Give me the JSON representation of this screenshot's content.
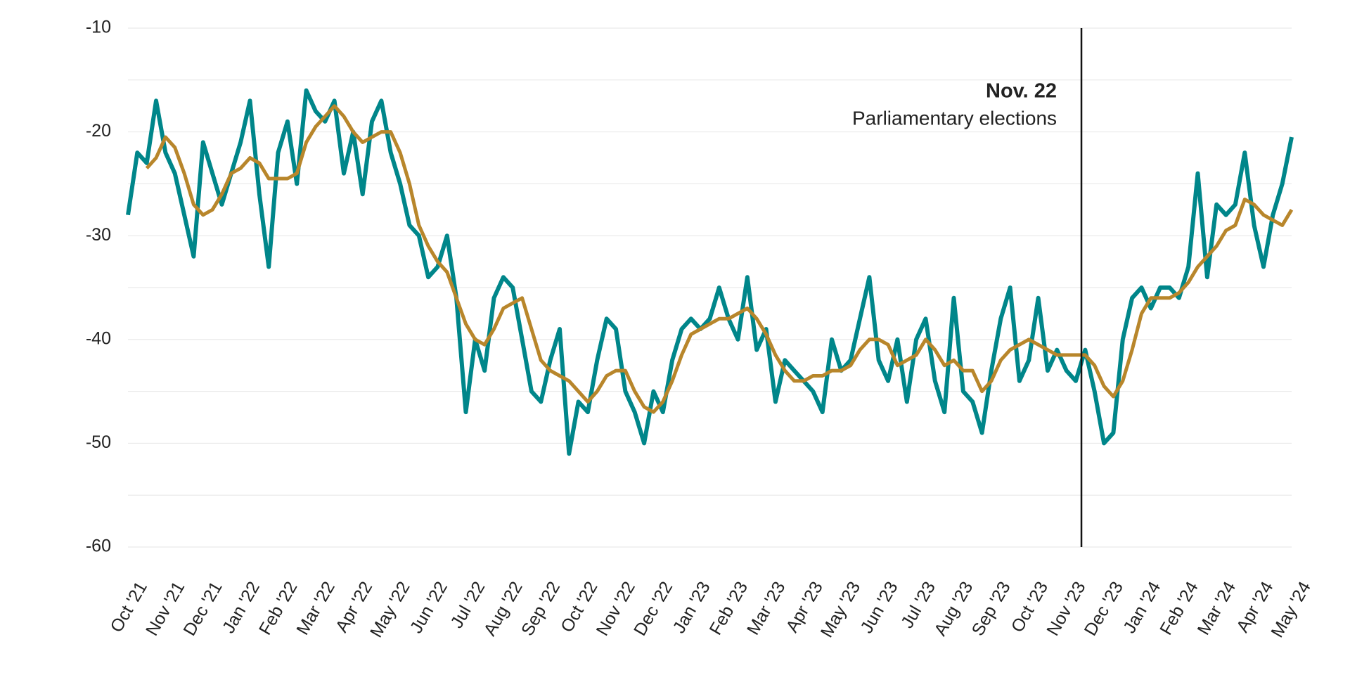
{
  "chart_data": {
    "type": "line",
    "x": [
      0,
      0.25,
      0.5,
      0.75,
      1,
      1.25,
      1.5,
      1.75,
      2,
      2.25,
      2.5,
      2.75,
      3,
      3.25,
      3.5,
      3.75,
      4,
      4.25,
      4.5,
      4.75,
      5,
      5.25,
      5.5,
      5.75,
      6,
      6.25,
      6.5,
      6.75,
      7,
      7.25,
      7.5,
      7.75,
      8,
      8.25,
      8.5,
      8.75,
      9,
      9.25,
      9.5,
      9.75,
      10,
      10.25,
      10.5,
      10.75,
      11,
      11.25,
      11.5,
      11.75,
      12,
      12.25,
      12.5,
      12.75,
      13,
      13.25,
      13.5,
      13.75,
      14,
      14.25,
      14.5,
      14.75,
      15,
      15.25,
      15.5,
      15.75,
      16,
      16.25,
      16.5,
      16.75,
      17,
      17.25,
      17.5,
      17.75,
      18,
      18.25,
      18.5,
      18.75,
      19,
      19.25,
      19.5,
      19.75,
      20,
      20.25,
      20.5,
      20.75,
      21,
      21.25,
      21.5,
      21.75,
      22,
      22.25,
      22.5,
      22.75,
      23,
      23.25,
      23.5,
      23.75,
      24,
      24.25,
      24.5,
      24.75,
      25,
      25.25,
      25.5,
      25.75,
      26,
      26.25,
      26.5,
      26.75,
      27,
      27.25,
      27.5,
      27.75,
      28,
      28.25,
      28.5,
      28.75,
      29,
      29.25,
      29.5,
      29.75,
      30,
      30.25,
      30.5,
      30.75,
      31
    ],
    "series": [
      {
        "color": "#00868a",
        "values": [
          -28,
          -22,
          -23,
          -17,
          -22,
          -24,
          -28,
          -32,
          -21,
          -24,
          -27,
          -24,
          -21,
          -17,
          -26,
          -33,
          -22,
          -19,
          -25,
          -16,
          -18,
          -19,
          -17,
          -24,
          -20,
          -26,
          -19,
          -17,
          -22,
          -25,
          -29,
          -30,
          -34,
          -33,
          -30,
          -36,
          -47,
          -40,
          -43,
          -36,
          -34,
          -35,
          -40,
          -45,
          -46,
          -42,
          -39,
          -51,
          -46,
          -47,
          -42,
          -38,
          -39,
          -45,
          -47,
          -50,
          -45,
          -47,
          -42,
          -39,
          -38,
          -39,
          -38,
          -35,
          -38,
          -40,
          -34,
          -41,
          -39,
          -46,
          -42,
          -43,
          -44,
          -45,
          -47,
          -40,
          -43,
          -42,
          -38,
          -34,
          -42,
          -44,
          -40,
          -46,
          -40,
          -38,
          -44,
          -47,
          -36,
          -45,
          -46,
          -49,
          -43,
          -38,
          -35,
          -44,
          -42,
          -36,
          -43,
          -41,
          -43,
          -44,
          -41,
          -45,
          -50,
          -49,
          -40,
          -36,
          -35,
          -37,
          -35,
          -35,
          -36,
          -33,
          -24,
          -34,
          -27,
          -28,
          -27,
          -22,
          -29,
          -33,
          -28,
          -25,
          -20.5
        ]
      },
      {
        "color": "#b8862b",
        "values": [
          null,
          null,
          -23.5,
          -22.5,
          -20.5,
          -21.5,
          -24,
          -27,
          -28,
          -27.5,
          -26,
          -24,
          -23.5,
          -22.5,
          -23,
          -24.5,
          -24.5,
          -24.5,
          -24,
          -21,
          -19.5,
          -18.5,
          -17.5,
          -18.5,
          -20,
          -21,
          -20.5,
          -20,
          -20,
          -22,
          -25,
          -29,
          -31,
          -32.5,
          -33.5,
          -36,
          -38.5,
          -40,
          -40.5,
          -39,
          -37,
          -36.5,
          -36,
          -39,
          -42,
          -43,
          -43.5,
          -44,
          -45,
          -46,
          -45,
          -43.5,
          -43,
          -43,
          -45,
          -46.5,
          -47,
          -46,
          -44,
          -41.5,
          -39.5,
          -39,
          -38.5,
          -38,
          -38,
          -37.5,
          -37,
          -38,
          -39.5,
          -41.5,
          -43,
          -44,
          -44,
          -43.5,
          -43.5,
          -43,
          -43,
          -42.5,
          -41,
          -40,
          -40,
          -40.5,
          -42.5,
          -42,
          -41.5,
          -40,
          -41,
          -42.5,
          -42,
          -43,
          -43,
          -45,
          -44,
          -42,
          -41,
          -40.5,
          -40,
          -40.5,
          -41,
          -41.5,
          -41.5,
          -41.5,
          -41.5,
          -42.5,
          -44.5,
          -45.5,
          -44,
          -41,
          -37.5,
          -36,
          -36,
          -36,
          -35.5,
          -34.5,
          -33,
          -32,
          -31,
          -29.5,
          -29,
          -26.5,
          -27,
          -28,
          -28.5,
          -29,
          -27.5
        ]
      }
    ],
    "xlim": [
      0,
      31
    ],
    "xticks": [
      {
        "value": 0,
        "label": "Oct '21"
      },
      {
        "value": 1,
        "label": "Nov '21"
      },
      {
        "value": 2,
        "label": "Dec '21"
      },
      {
        "value": 3,
        "label": "Jan '22"
      },
      {
        "value": 4,
        "label": "Feb '22"
      },
      {
        "value": 5,
        "label": "Mar '22"
      },
      {
        "value": 6,
        "label": "Apr '22"
      },
      {
        "value": 7,
        "label": "May '22"
      },
      {
        "value": 8,
        "label": "Jun '22"
      },
      {
        "value": 9,
        "label": "Jul '22"
      },
      {
        "value": 10,
        "label": "Aug '22"
      },
      {
        "value": 11,
        "label": "Sep '22"
      },
      {
        "value": 12,
        "label": "Oct '22"
      },
      {
        "value": 13,
        "label": "Nov '22"
      },
      {
        "value": 14,
        "label": "Dec '22"
      },
      {
        "value": 15,
        "label": "Jan '23"
      },
      {
        "value": 16,
        "label": "Feb '23"
      },
      {
        "value": 17,
        "label": "Mar '23"
      },
      {
        "value": 18,
        "label": "Apr '23"
      },
      {
        "value": 19,
        "label": "May '23"
      },
      {
        "value": 20,
        "label": "Jun '23"
      },
      {
        "value": 21,
        "label": "Jul '23"
      },
      {
        "value": 22,
        "label": "Aug '23"
      },
      {
        "value": 23,
        "label": "Sep '23"
      },
      {
        "value": 24,
        "label": "Oct '23"
      },
      {
        "value": 25,
        "label": "Nov '23"
      },
      {
        "value": 26,
        "label": "Dec '23"
      },
      {
        "value": 27,
        "label": "Jan '24"
      },
      {
        "value": 28,
        "label": "Feb '24"
      },
      {
        "value": 29,
        "label": "Mar '24"
      },
      {
        "value": 30,
        "label": "Apr '24"
      },
      {
        "value": 31,
        "label": "May '24"
      }
    ],
    "ylim": [
      -60,
      -10
    ],
    "yticks": [
      -60,
      -50,
      -40,
      -30,
      -20,
      -10
    ],
    "yminor": [
      -55,
      -45,
      -35,
      -25,
      -15
    ],
    "grid": true,
    "annotation": {
      "x": 25.4,
      "title": "Nov. 22",
      "text": "Parliamentary elections"
    }
  }
}
